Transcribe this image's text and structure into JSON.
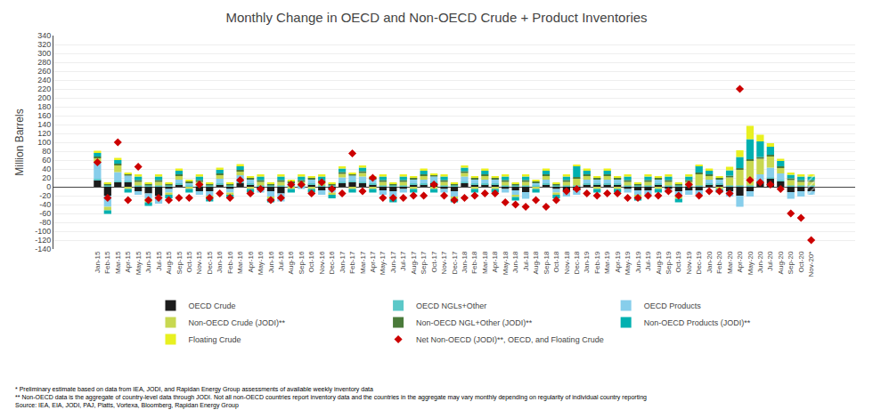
{
  "chart_data": {
    "type": "bar",
    "stacked": true,
    "title": "Monthly Change in OECD and Non-OECD Crude + Product Inventories",
    "ylabel": "Million Barrels",
    "annotations": [
      "* Preliminary estimate based on data from IEA, JODI, and Rapidan Energy Group assessments of available weekly inventory data",
      "** Non-OECD data is the aggregate of country-level data through JODI. Not all non-OECD countries report inventory data and the countries in the aggregate may vary monthly depending on regularity of individual country reporting",
      "Source: IEA, EIA, JODI, PAJ, Platts, Vortexa, Bloomberg, Rapidan Energy Group"
    ],
    "categories": [
      "Jan-15",
      "Feb-15",
      "Mar-15",
      "Apr-15",
      "May-15",
      "Jun-15",
      "Jul-15",
      "Aug-15",
      "Sep-15",
      "Oct-15",
      "Nov-15",
      "Dec-15",
      "Jan-16",
      "Feb-16",
      "Mar-16",
      "Apr-16",
      "May-16",
      "Jun-16",
      "Jul-16",
      "Aug-16",
      "Sep-16",
      "Oct-16",
      "Nov-16",
      "Dec-16",
      "Jan-17",
      "Feb-17",
      "Mar-17",
      "Apr-17",
      "May-17",
      "Jun-17",
      "Jul-17",
      "Aug-17",
      "Sep-17",
      "Oct-17",
      "Nov-17",
      "Dec-17",
      "Jan-18",
      "Feb-18",
      "Mar-18",
      "Apr-18",
      "May-18",
      "Jun-18",
      "Jul-18",
      "Aug-18",
      "Sep-18",
      "Oct-18",
      "Nov-18",
      "Dec-18",
      "Jan-19",
      "Feb-19",
      "Mar-19",
      "Apr-19",
      "May-19",
      "Jun-19",
      "Jul-19",
      "Aug-19",
      "Sep-19",
      "Oct-19",
      "Nov-19",
      "Dec-19",
      "Jan-20",
      "Feb-20",
      "Mar-20",
      "Apr-20",
      "May-20",
      "Jun-20",
      "Jul-20",
      "Aug-20",
      "Sep-20",
      "Oct-20",
      "Nov-20*"
    ],
    "series": [
      {
        "name": "OECD Crude",
        "color": "#1c1c1c",
        "values": [
          15,
          -20,
          10,
          10,
          -10,
          -15,
          -20,
          -5,
          5,
          0,
          -10,
          -10,
          5,
          -5,
          8,
          5,
          -5,
          -10,
          -15,
          0,
          0,
          5,
          -8,
          -5,
          8,
          10,
          8,
          5,
          -8,
          -10,
          -5,
          5,
          5,
          8,
          -5,
          -10,
          8,
          5,
          5,
          5,
          -5,
          -8,
          -12,
          0,
          5,
          -5,
          -10,
          -8,
          5,
          5,
          5,
          5,
          -5,
          -8,
          -8,
          5,
          -5,
          -10,
          -8,
          -8,
          5,
          5,
          -10,
          -20,
          -10,
          10,
          18,
          12,
          -12,
          -10,
          -10
        ]
      },
      {
        "name": "OECD NGLs+Other",
        "color": "#5bc8c8",
        "values": [
          3,
          3,
          3,
          3,
          3,
          3,
          3,
          3,
          3,
          3,
          3,
          3,
          3,
          3,
          3,
          3,
          3,
          3,
          3,
          3,
          3,
          3,
          3,
          3,
          3,
          3,
          3,
          3,
          3,
          3,
          3,
          3,
          3,
          3,
          3,
          3,
          3,
          3,
          3,
          3,
          3,
          3,
          3,
          3,
          3,
          3,
          3,
          3,
          3,
          3,
          3,
          3,
          3,
          3,
          3,
          3,
          3,
          3,
          3,
          3,
          3,
          3,
          3,
          3,
          3,
          3,
          3,
          3,
          3,
          3,
          3
        ]
      },
      {
        "name": "OECD Products",
        "color": "#87ceeb",
        "values": [
          38,
          -25,
          20,
          12,
          -8,
          -12,
          -18,
          -8,
          8,
          5,
          -8,
          -10,
          10,
          -8,
          15,
          8,
          -8,
          -12,
          -18,
          5,
          -5,
          8,
          -10,
          -8,
          10,
          12,
          12,
          8,
          -10,
          -12,
          -8,
          8,
          8,
          12,
          -8,
          -12,
          12,
          8,
          8,
          8,
          -8,
          -10,
          -15,
          5,
          8,
          -8,
          -12,
          -10,
          8,
          8,
          8,
          8,
          -8,
          -10,
          -10,
          8,
          -8,
          -12,
          -10,
          -10,
          8,
          8,
          -12,
          -25,
          -12,
          15,
          22,
          15,
          -15,
          -12,
          -8
        ]
      },
      {
        "name": "Non-OECD Crude (JODI)**",
        "color": "#c8d850",
        "values": [
          8,
          -8,
          15,
          -5,
          8,
          -8,
          8,
          -5,
          8,
          -5,
          8,
          -5,
          8,
          -5,
          8,
          -5,
          8,
          -5,
          8,
          -5,
          8,
          -5,
          8,
          -5,
          8,
          -5,
          8,
          -5,
          8,
          -5,
          8,
          -5,
          8,
          -5,
          8,
          -5,
          8,
          -5,
          8,
          -5,
          8,
          -5,
          8,
          -5,
          8,
          -5,
          8,
          15,
          8,
          -5,
          8,
          -5,
          8,
          -5,
          8,
          -5,
          8,
          -5,
          8,
          25,
          8,
          -5,
          18,
          35,
          55,
          35,
          25,
          12,
          12,
          8,
          8
        ]
      },
      {
        "name": "Non-OECD NGL+Other (JODI)**",
        "color": "#4a7a3a",
        "values": [
          4,
          4,
          4,
          4,
          4,
          4,
          4,
          4,
          4,
          4,
          4,
          4,
          4,
          4,
          4,
          4,
          4,
          4,
          4,
          4,
          4,
          4,
          4,
          4,
          4,
          4,
          4,
          4,
          4,
          4,
          4,
          4,
          4,
          4,
          4,
          4,
          4,
          4,
          4,
          4,
          4,
          4,
          4,
          4,
          4,
          4,
          4,
          4,
          4,
          4,
          4,
          4,
          4,
          4,
          4,
          4,
          4,
          4,
          4,
          4,
          4,
          4,
          4,
          4,
          4,
          4,
          4,
          4,
          4,
          4,
          4
        ]
      },
      {
        "name": "Non-OECD Products (JODI)**",
        "color": "#00b0b0",
        "values": [
          8,
          -8,
          8,
          -8,
          8,
          -8,
          8,
          -8,
          8,
          -8,
          8,
          -8,
          8,
          -8,
          8,
          -8,
          8,
          -8,
          8,
          -8,
          8,
          -8,
          8,
          -8,
          8,
          -8,
          8,
          -8,
          8,
          -8,
          8,
          -8,
          8,
          -8,
          8,
          -8,
          8,
          -8,
          8,
          -8,
          8,
          -8,
          8,
          -8,
          8,
          -8,
          8,
          25,
          8,
          -8,
          8,
          -8,
          8,
          -8,
          8,
          -8,
          8,
          -8,
          8,
          15,
          8,
          -8,
          12,
          25,
          45,
          35,
          18,
          12,
          8,
          8,
          8
        ]
      },
      {
        "name": "Floating Crude",
        "color": "#e8f020",
        "values": [
          5,
          3,
          5,
          3,
          5,
          3,
          5,
          3,
          5,
          3,
          5,
          3,
          5,
          3,
          5,
          3,
          5,
          3,
          5,
          3,
          5,
          3,
          5,
          3,
          5,
          3,
          5,
          3,
          5,
          3,
          5,
          3,
          5,
          3,
          5,
          3,
          5,
          3,
          5,
          3,
          5,
          3,
          5,
          3,
          5,
          3,
          5,
          3,
          5,
          3,
          5,
          3,
          5,
          3,
          5,
          3,
          5,
          3,
          5,
          3,
          5,
          3,
          8,
          15,
          30,
          15,
          8,
          5,
          5,
          5,
          5
        ]
      },
      {
        "name": "Net Non-OECD (JODI)**, OECD, and Floating Crude",
        "type": "scatter",
        "marker": "diamond",
        "color": "#cc0000",
        "values": [
          55,
          -25,
          100,
          -30,
          45,
          -30,
          -25,
          -30,
          -25,
          -25,
          5,
          -25,
          -15,
          -25,
          15,
          -15,
          -5,
          -30,
          -25,
          5,
          5,
          -15,
          10,
          -5,
          -15,
          75,
          -10,
          20,
          -25,
          -25,
          -25,
          -20,
          -20,
          5,
          -20,
          -30,
          -25,
          -20,
          -15,
          -15,
          -35,
          -40,
          -45,
          -30,
          -45,
          -30,
          -10,
          -5,
          -15,
          -20,
          -15,
          -15,
          -25,
          -25,
          -20,
          -20,
          -10,
          -20,
          5,
          -20,
          -10,
          -10,
          -15,
          220,
          15,
          10,
          5,
          -5,
          -60,
          -70,
          -120
        ]
      }
    ],
    "ylim": [
      -140,
      340
    ],
    "yticks": [
      -140,
      -120,
      -100,
      -80,
      -60,
      -40,
      -20,
      0,
      20,
      40,
      60,
      80,
      100,
      120,
      140,
      160,
      180,
      200,
      220,
      240,
      260,
      280,
      300,
      320,
      340
    ],
    "grid": true,
    "legend": "bottom"
  }
}
